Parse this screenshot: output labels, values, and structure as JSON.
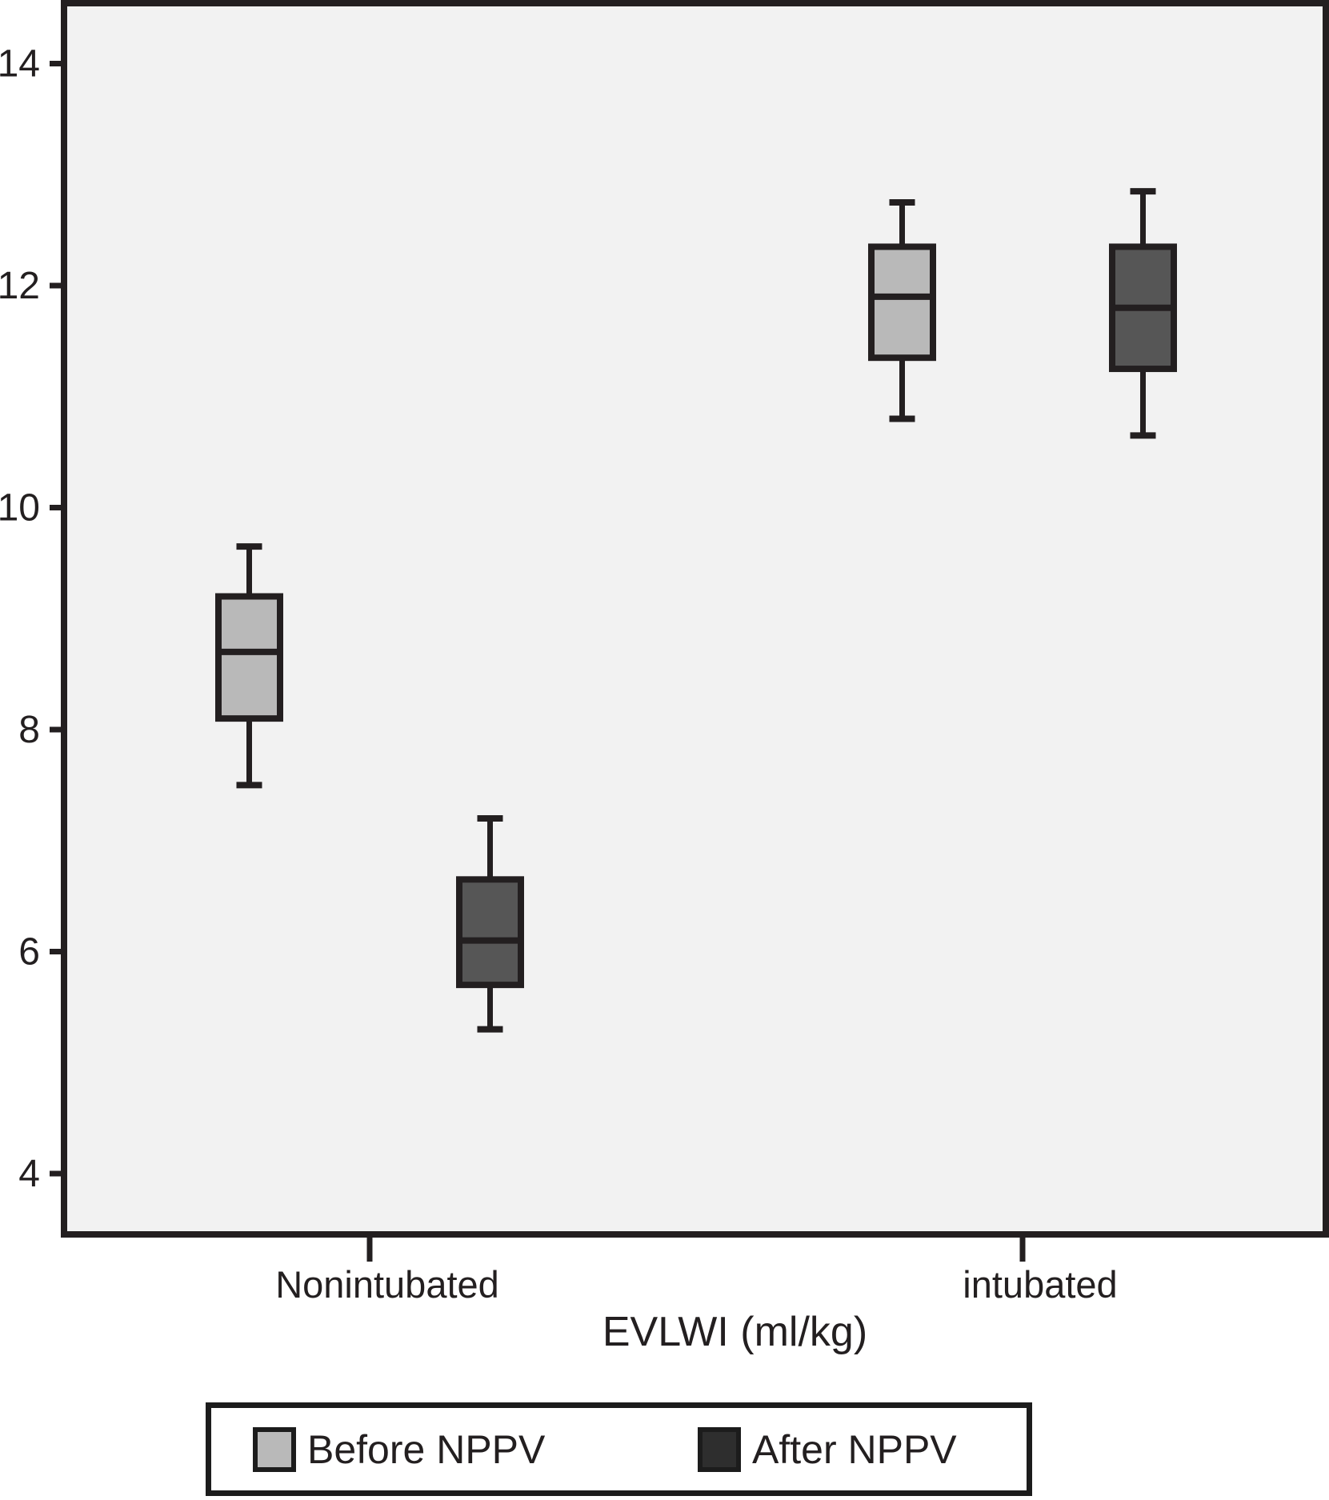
{
  "chart_data": {
    "type": "boxplot",
    "title": "",
    "xlabel": "EVLWI (ml/kg)",
    "ylabel": "",
    "ylim": [
      3.45,
      14.55
    ],
    "yticks": [
      4,
      6,
      8,
      10,
      12,
      14
    ],
    "grid": false,
    "groups": [
      "Nonintubated",
      "intubated"
    ],
    "colors": {
      "ink": "#231f20",
      "plot_background": "#f2f2f2",
      "page_background": "#ffffff",
      "before_fill": "#b9b9b9",
      "after_fill": "#565656"
    },
    "series": [
      {
        "name": "Before NPPV",
        "color": "#b9b9b9",
        "boxes": [
          {
            "group": "Nonintubated",
            "whisker_low": 7.5,
            "q1": 8.1,
            "median": 8.7,
            "q3": 9.2,
            "whisker_high": 9.65
          },
          {
            "group": "intubated",
            "whisker_low": 10.8,
            "q1": 11.35,
            "median": 11.9,
            "q3": 12.35,
            "whisker_high": 12.75
          }
        ]
      },
      {
        "name": "After NPPV",
        "color": "#565656",
        "boxes": [
          {
            "group": "Nonintubated",
            "whisker_low": 5.3,
            "q1": 5.7,
            "median": 6.1,
            "q3": 6.65,
            "whisker_high": 7.2
          },
          {
            "group": "intubated",
            "whisker_low": 10.65,
            "q1": 11.25,
            "median": 11.8,
            "q3": 12.35,
            "whisker_high": 12.85
          }
        ]
      }
    ],
    "legend": {
      "position": "bottom",
      "items": [
        {
          "label": "Before NPPV",
          "swatch_color": "#b9b9b9"
        },
        {
          "label": "After NPPV",
          "swatch_color": "#2e2e2e"
        }
      ]
    }
  }
}
